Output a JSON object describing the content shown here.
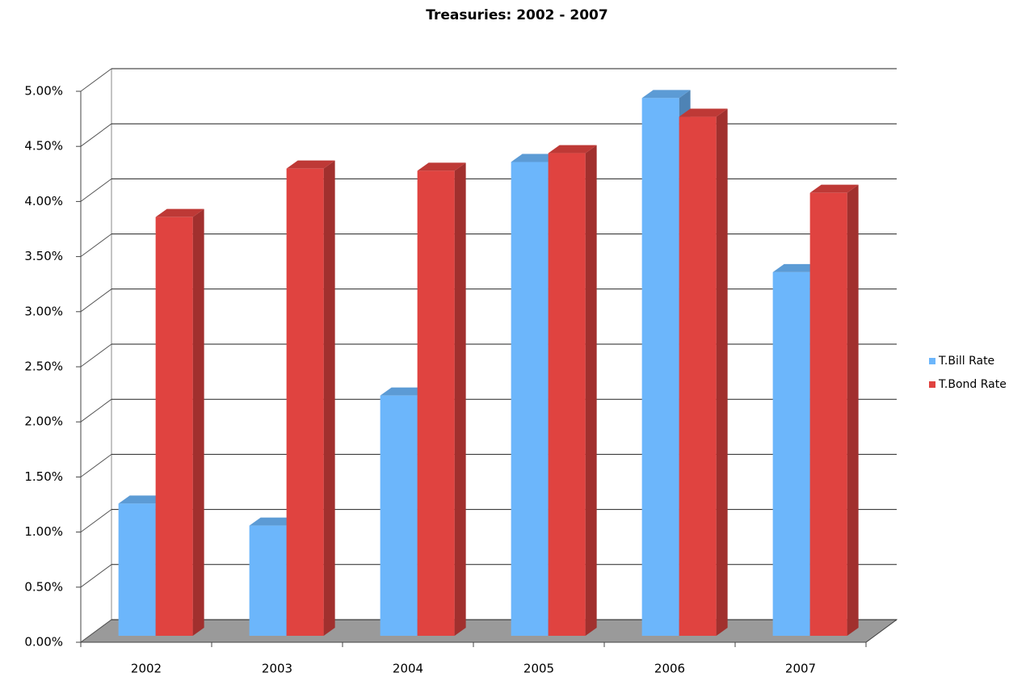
{
  "chart_data": {
    "type": "bar3d",
    "title": "Treasuries: 2002 - 2007",
    "categories": [
      "2002",
      "2003",
      "2004",
      "2005",
      "2006",
      "2007"
    ],
    "series": [
      {
        "name": "T.Bill Rate",
        "color": "#6cb6fb",
        "values": [
          1.2,
          1.0,
          2.18,
          4.3,
          4.88,
          3.3
        ]
      },
      {
        "name": "T.Bond Rate",
        "color": "#e04340",
        "values": [
          3.8,
          4.24,
          4.22,
          4.38,
          4.71,
          4.02
        ]
      }
    ],
    "ylim": [
      0,
      5
    ],
    "yticks": [
      {
        "value": 0,
        "label": "0.00%"
      },
      {
        "value": 0.5,
        "label": "0.50%"
      },
      {
        "value": 1,
        "label": "1.00%"
      },
      {
        "value": 1.5,
        "label": "1.50%"
      },
      {
        "value": 2,
        "label": "2.00%"
      },
      {
        "value": 2.5,
        "label": "2.50%"
      },
      {
        "value": 3,
        "label": "3.00%"
      },
      {
        "value": 3.5,
        "label": "3.50%"
      },
      {
        "value": 4,
        "label": "4.00%"
      },
      {
        "value": 4.5,
        "label": "4.50%"
      },
      {
        "value": 5,
        "label": "5.00%"
      }
    ],
    "grid": true,
    "legend": "right"
  }
}
